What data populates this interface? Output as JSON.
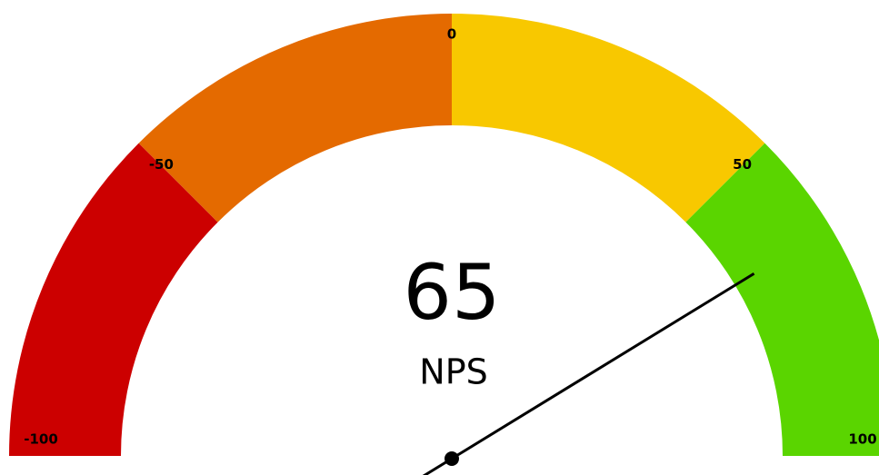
{
  "chart_data": {
    "type": "gauge",
    "value": 65,
    "label": "NPS",
    "range": [
      -100,
      100
    ],
    "ticks": [
      -100,
      -50,
      0,
      50,
      100
    ],
    "bands": [
      {
        "from": -100,
        "to": -50,
        "color": "#cc0000"
      },
      {
        "from": -50,
        "to": 0,
        "color": "#e46a00"
      },
      {
        "from": 0,
        "to": 50,
        "color": "#f8c800"
      },
      {
        "from": 50,
        "to": 100,
        "color": "#5ad500"
      }
    ],
    "needle_color": "#000000"
  }
}
